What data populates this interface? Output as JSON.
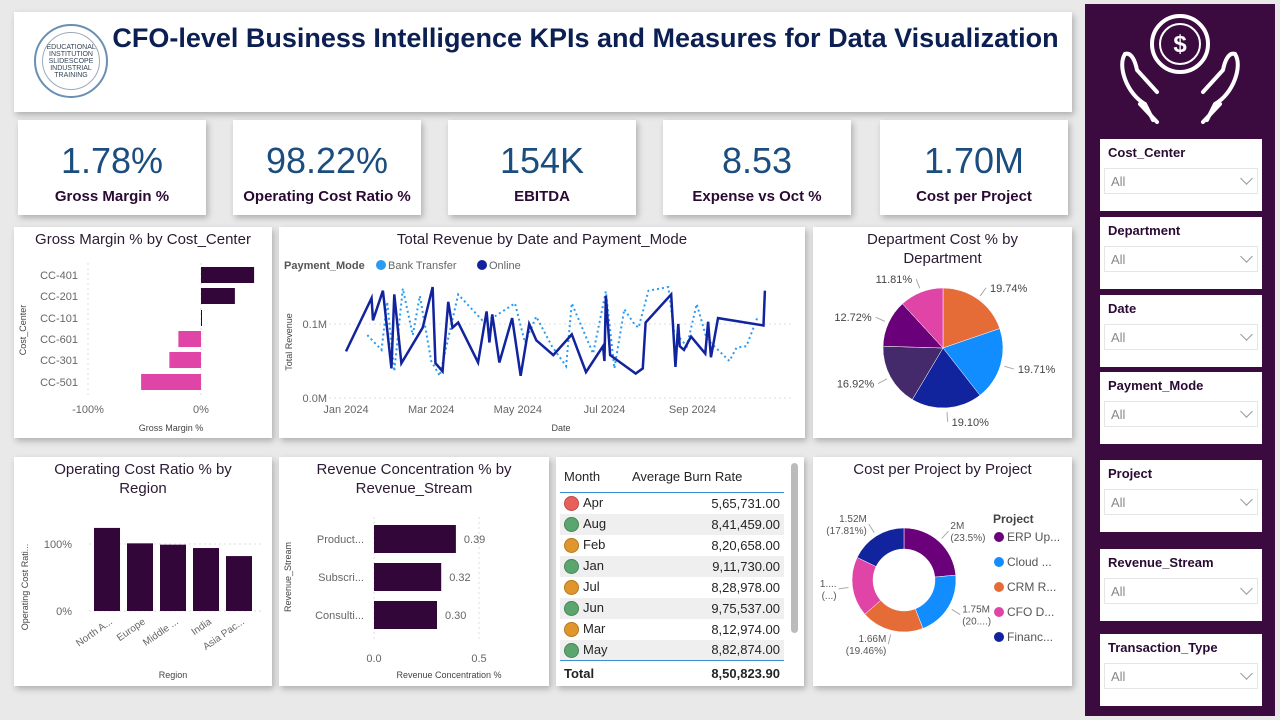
{
  "header": {
    "title": "CFO-level Business Intelligence KPIs and Measures for Data Visualization",
    "logo_text": "EDUCATIONAL INSTITUTION SLIDESCOPE INDUSTRIAL TRAINING"
  },
  "kpis": [
    {
      "value": "1.78%",
      "label": "Gross Margin %"
    },
    {
      "value": "98.22%",
      "label": "Operating Cost Ratio %"
    },
    {
      "value": "154K",
      "label": "EBITDA"
    },
    {
      "value": "8.53",
      "label": "Expense vs Oct %"
    },
    {
      "value": "1.70M",
      "label": "Cost per Project"
    }
  ],
  "slicers": [
    {
      "label": "Cost_Center",
      "value": "All"
    },
    {
      "label": "Department",
      "value": "All"
    },
    {
      "label": "Date",
      "value": "All"
    },
    {
      "label": "Payment_Mode",
      "value": "All"
    },
    {
      "label": "Project",
      "value": "All"
    },
    {
      "label": "Revenue_Stream",
      "value": "All"
    },
    {
      "label": "Transaction_Type",
      "value": "All"
    }
  ],
  "sidebar": {
    "icon": "hands-holding-dollar-coin-icon"
  },
  "colors": {
    "accent": "#3b0a3f",
    "positive": "#33063a",
    "negative": "#e044a7",
    "bank_transfer": "#2b9bf0",
    "online": "#12239e"
  },
  "table": {
    "headers": [
      "Month",
      "Average Burn Rate"
    ],
    "rows": [
      {
        "month": "Apr",
        "value": "5,65,731.00",
        "status": "red",
        "color": "#e8605a"
      },
      {
        "month": "Aug",
        "value": "8,41,459.00",
        "status": "green",
        "color": "#5ba66f"
      },
      {
        "month": "Feb",
        "value": "8,20,658.00",
        "status": "amber",
        "color": "#e0962a"
      },
      {
        "month": "Jan",
        "value": "9,11,730.00",
        "status": "green",
        "color": "#5ba66f"
      },
      {
        "month": "Jul",
        "value": "8,28,978.00",
        "status": "amber",
        "color": "#e0962a"
      },
      {
        "month": "Jun",
        "value": "9,75,537.00",
        "status": "green",
        "color": "#5ba66f"
      },
      {
        "month": "Mar",
        "value": "8,12,974.00",
        "status": "amber",
        "color": "#e0962a"
      },
      {
        "month": "May",
        "value": "8,82,874.00",
        "status": "green",
        "color": "#5ba66f"
      }
    ],
    "total_label": "Total",
    "total_value": "8,50,823.90"
  },
  "chart_data": [
    {
      "type": "bar",
      "orientation": "horizontal",
      "title": "Gross Margin % by Cost_Center",
      "xlabel": "Gross Margin %",
      "ylabel": "Cost_Center",
      "categories": [
        "CC-401",
        "CC-201",
        "CC-101",
        "CC-601",
        "CC-301",
        "CC-501"
      ],
      "values": [
        47,
        30,
        0.5,
        -20,
        -28,
        -53
      ],
      "xticks": [
        "-100%",
        "0%"
      ],
      "xlim": [
        -100,
        50
      ]
    },
    {
      "type": "line",
      "title": "Total Revenue by Date and Payment_Mode",
      "xlabel": "Date",
      "ylabel": "Total Revenue",
      "legend_title": "Payment_Mode",
      "legend": "top-left",
      "xticks": [
        "Jan 2024",
        "Mar 2024",
        "May 2024",
        "Jul 2024",
        "Sep 2024"
      ],
      "yticks": [
        "0.0M",
        "0.1M"
      ],
      "series": [
        {
          "name": "Bank Transfer",
          "style": "dotted",
          "color": "#2b9bf0",
          "points": [
            [
              "2024-01-16",
              0.085
            ],
            [
              "2024-01-26",
              0.065
            ],
            [
              "2024-01-30",
              0.13
            ],
            [
              "2024-02-04",
              0.036
            ],
            [
              "2024-02-10",
              0.148
            ],
            [
              "2024-02-17",
              0.085
            ],
            [
              "2024-02-22",
              0.138
            ],
            [
              "2024-03-01",
              0.05
            ],
            [
              "2024-03-07",
              0.03
            ],
            [
              "2024-03-20",
              0.14
            ],
            [
              "2024-04-06",
              0.105
            ],
            [
              "2024-04-13",
              0.108
            ],
            [
              "2024-04-29",
              0.128
            ],
            [
              "2024-05-06",
              0.075
            ],
            [
              "2024-05-14",
              0.11
            ],
            [
              "2024-05-25",
              0.07
            ],
            [
              "2024-06-04",
              0.043
            ],
            [
              "2024-06-08",
              0.128
            ],
            [
              "2024-06-23",
              0.06
            ],
            [
              "2024-07-02",
              0.144
            ],
            [
              "2024-07-08",
              0.04
            ],
            [
              "2024-07-15",
              0.12
            ],
            [
              "2024-07-22",
              0.1
            ],
            [
              "2024-07-25",
              0.095
            ],
            [
              "2024-08-01",
              0.145
            ],
            [
              "2024-08-15",
              0.15
            ],
            [
              "2024-08-19",
              0.09
            ],
            [
              "2024-08-28",
              0.07
            ],
            [
              "2024-09-04",
              0.127
            ],
            [
              "2024-09-11",
              0.08
            ],
            [
              "2024-09-27",
              0.05
            ],
            [
              "2024-10-02",
              0.068
            ],
            [
              "2024-10-09",
              0.07
            ],
            [
              "2024-10-17",
              0.11
            ]
          ]
        },
        {
          "name": "Online",
          "style": "solid",
          "color": "#12239e",
          "points": [
            [
              "2024-01-01",
              0.063
            ],
            [
              "2024-01-19",
              0.135
            ],
            [
              "2024-01-20",
              0.105
            ],
            [
              "2024-01-27",
              0.145
            ],
            [
              "2024-02-02",
              0.04
            ],
            [
              "2024-02-04",
              0.14
            ],
            [
              "2024-02-09",
              0.047
            ],
            [
              "2024-02-24",
              0.095
            ],
            [
              "2024-03-02",
              0.15
            ],
            [
              "2024-03-04",
              0.047
            ],
            [
              "2024-03-09",
              0.036
            ],
            [
              "2024-03-13",
              0.13
            ],
            [
              "2024-03-16",
              0.095
            ],
            [
              "2024-03-20",
              0.102
            ],
            [
              "2024-04-03",
              0.048
            ],
            [
              "2024-04-09",
              0.117
            ],
            [
              "2024-04-11",
              0.075
            ],
            [
              "2024-04-13",
              0.113
            ],
            [
              "2024-04-18",
              0.048
            ],
            [
              "2024-04-27",
              0.108
            ],
            [
              "2024-05-03",
              0.03
            ],
            [
              "2024-05-09",
              0.1
            ],
            [
              "2024-05-14",
              0.078
            ],
            [
              "2024-05-26",
              0.058
            ],
            [
              "2024-06-08",
              0.086
            ],
            [
              "2024-06-18",
              0.035
            ],
            [
              "2024-06-30",
              0.07
            ],
            [
              "2024-07-01",
              0.05
            ],
            [
              "2024-07-02",
              0.138
            ],
            [
              "2024-07-05",
              0.058
            ],
            [
              "2024-07-23",
              0.033
            ],
            [
              "2024-07-28",
              0.04
            ],
            [
              "2024-07-30",
              0.102
            ],
            [
              "2024-08-17",
              0.14
            ],
            [
              "2024-08-20",
              0.042
            ],
            [
              "2024-08-22",
              0.1
            ],
            [
              "2024-08-23",
              0.07
            ],
            [
              "2024-08-26",
              0.065
            ],
            [
              "2024-08-31",
              0.083
            ],
            [
              "2024-09-10",
              0.06
            ],
            [
              "2024-09-12",
              0.103
            ],
            [
              "2024-09-14",
              0.055
            ],
            [
              "2024-09-19",
              0.108
            ],
            [
              "2024-10-21",
              0.098
            ],
            [
              "2024-10-22",
              0.145
            ]
          ]
        }
      ]
    },
    {
      "type": "pie",
      "title": "Department Cost % by Department",
      "values": [
        19.74,
        19.71,
        19.1,
        16.92,
        12.72,
        11.81
      ],
      "labels": [
        "19.74%",
        "19.71%",
        "19.10%",
        "16.92%",
        "12.72%",
        "11.81%"
      ],
      "colors": [
        "#e66c37",
        "#118dff",
        "#12239e",
        "#44296b",
        "#6b007b",
        "#e044a7"
      ]
    },
    {
      "type": "bar",
      "orientation": "vertical",
      "title": "Operating Cost Ratio % by Region",
      "xlabel": "Region",
      "ylabel": "Operating Cost Rati...",
      "categories": [
        "North A...",
        "Europe",
        "Middle ...",
        "India",
        "Asia Pac..."
      ],
      "values": [
        124,
        101,
        99,
        94,
        82
      ],
      "yticks": [
        "0%",
        "100%"
      ]
    },
    {
      "type": "bar",
      "orientation": "horizontal",
      "title": "Revenue Concentration % by Revenue_Stream",
      "xlabel": "Revenue Concentration %",
      "ylabel": "Revenue_Stream",
      "categories": [
        "Product...",
        "Subscri...",
        "Consulti..."
      ],
      "values": [
        0.39,
        0.32,
        0.3
      ],
      "labels": [
        "0.39",
        "0.32",
        "0.30"
      ],
      "xticks": [
        "0.0",
        "0.5"
      ]
    },
    {
      "type": "pie",
      "variant": "donut",
      "title": "Cost per Project by Project",
      "legend_title": "Project",
      "legend": "right",
      "categories": [
        "ERP Up...",
        "Cloud ...",
        "CRM R...",
        "CFO D...",
        "Financ..."
      ],
      "values": [
        2.0,
        1.75,
        1.66,
        1.58,
        1.52
      ],
      "labels": [
        [
          "2M",
          "(23.5%)"
        ],
        [
          "1.75M",
          "(20....)"
        ],
        [
          "1.66M",
          "(19.46%)"
        ],
        [
          "1....",
          "(...)"
        ],
        [
          "1.52M",
          "(17.81%)"
        ]
      ],
      "colors": [
        "#6b007b",
        "#118dff",
        "#e66c37",
        "#e044a7",
        "#12239e"
      ]
    }
  ]
}
